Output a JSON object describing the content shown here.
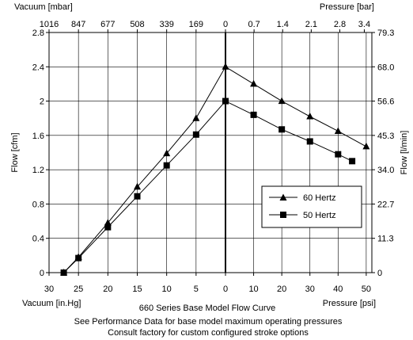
{
  "chart_data": {
    "type": "line",
    "title": "660 Series Base Model  Flow Curve",
    "footnotes": [
      "See Performance Data for base model maximum operating pressures",
      "Consult factory for custom configured stroke options"
    ],
    "axes": {
      "left": {
        "label": "Flow [cfm]",
        "ylim": [
          0,
          2.8
        ],
        "ticks": [
          "0",
          "0.4",
          "0.8",
          "1.2",
          "1.6",
          "2",
          "2.4",
          "2.8"
        ]
      },
      "right": {
        "label": "Flow [l/min]",
        "ticks": [
          "0",
          "11.3",
          "22.7",
          "34.0",
          "45.3",
          "56.6",
          "68.0",
          "79.3"
        ]
      },
      "bottom_left": {
        "label": "Vacuum [in.Hg]",
        "ticks": [
          "30",
          "25",
          "20",
          "15",
          "10",
          "5",
          "0"
        ]
      },
      "bottom_right": {
        "label": "Pressure [psi]",
        "ticks": [
          "0",
          "10",
          "20",
          "30",
          "40",
          "50"
        ]
      },
      "top_left": {
        "label": "Vacuum [mbar]",
        "ticks": [
          "1016",
          "847",
          "677",
          "508",
          "339",
          "169",
          "0"
        ]
      },
      "top_right": {
        "label": "Pressure [bar]",
        "ticks": [
          "0.7",
          "1.4",
          "2.1",
          "2.8",
          "3.4"
        ]
      }
    },
    "grid": true,
    "legend_position": "right-middle",
    "series": [
      {
        "name": "60 Hertz",
        "marker": "triangle",
        "vacuum_points": [
          {
            "x": 27.5,
            "y": 0
          },
          {
            "x": 25,
            "y": 0.18
          },
          {
            "x": 20,
            "y": 0.58
          },
          {
            "x": 15,
            "y": 1.0
          },
          {
            "x": 10,
            "y": 1.39
          },
          {
            "x": 5,
            "y": 1.8
          },
          {
            "x": 0,
            "y": 2.4
          }
        ],
        "pressure_points": [
          {
            "x": 0,
            "y": 2.4
          },
          {
            "x": 10,
            "y": 2.2
          },
          {
            "x": 20,
            "y": 2.0
          },
          {
            "x": 30,
            "y": 1.82
          },
          {
            "x": 40,
            "y": 1.65
          },
          {
            "x": 50,
            "y": 1.47
          }
        ]
      },
      {
        "name": "50 Hertz",
        "marker": "square",
        "vacuum_points": [
          {
            "x": 27.5,
            "y": 0
          },
          {
            "x": 25,
            "y": 0.17
          },
          {
            "x": 20,
            "y": 0.53
          },
          {
            "x": 15,
            "y": 0.89
          },
          {
            "x": 10,
            "y": 1.25
          },
          {
            "x": 5,
            "y": 1.61
          },
          {
            "x": 0,
            "y": 2.0
          }
        ],
        "pressure_points": [
          {
            "x": 0,
            "y": 2.0
          },
          {
            "x": 10,
            "y": 1.84
          },
          {
            "x": 20,
            "y": 1.67
          },
          {
            "x": 30,
            "y": 1.53
          },
          {
            "x": 40,
            "y": 1.38
          },
          {
            "x": 45,
            "y": 1.3
          }
        ]
      }
    ]
  }
}
